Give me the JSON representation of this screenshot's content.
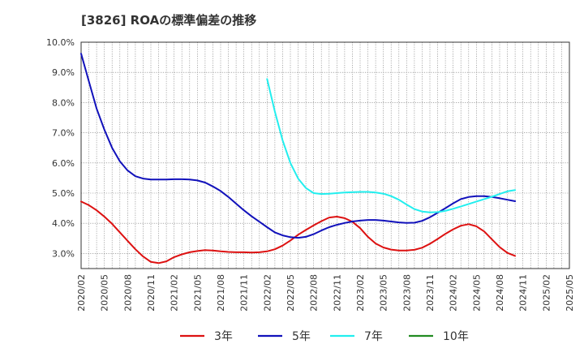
{
  "chart_data": {
    "type": "line",
    "title": "[3826]  ROAの標準偏差の推移",
    "xlabel": "",
    "ylabel": "",
    "ylim": [
      2.5,
      10.0
    ],
    "y_ticks": [
      "10.0%",
      "9.0%",
      "8.0%",
      "7.0%",
      "6.0%",
      "5.0%",
      "4.0%",
      "3.0%"
    ],
    "y_tick_values": [
      10.0,
      9.0,
      8.0,
      7.0,
      6.0,
      5.0,
      4.0,
      3.0
    ],
    "x_ticks": [
      "2020/02",
      "2020/05",
      "2020/08",
      "2020/11",
      "2021/02",
      "2021/05",
      "2021/08",
      "2021/11",
      "2022/02",
      "2022/05",
      "2022/08",
      "2022/11",
      "2023/02",
      "2023/05",
      "2023/08",
      "2023/11",
      "2024/02",
      "2024/05",
      "2024/08",
      "2024/11",
      "2025/02",
      "2025/05"
    ],
    "grid": true,
    "legend_position": "bottom",
    "series": [
      {
        "name": "3年",
        "color": "#dd1111",
        "points": [
          [
            "2020/02",
            4.72
          ],
          [
            "2020/03",
            4.6
          ],
          [
            "2020/04",
            4.43
          ],
          [
            "2020/05",
            4.22
          ],
          [
            "2020/06",
            3.98
          ],
          [
            "2020/07",
            3.7
          ],
          [
            "2020/08",
            3.42
          ],
          [
            "2020/09",
            3.14
          ],
          [
            "2020/10",
            2.9
          ],
          [
            "2020/11",
            2.72
          ],
          [
            "2020/12",
            2.68
          ],
          [
            "2021/01",
            2.74
          ],
          [
            "2021/02",
            2.88
          ],
          [
            "2021/03",
            2.97
          ],
          [
            "2021/04",
            3.04
          ],
          [
            "2021/05",
            3.08
          ],
          [
            "2021/06",
            3.11
          ],
          [
            "2021/07",
            3.1
          ],
          [
            "2021/08",
            3.07
          ],
          [
            "2021/09",
            3.05
          ],
          [
            "2021/10",
            3.04
          ],
          [
            "2021/11",
            3.04
          ],
          [
            "2021/12",
            3.03
          ],
          [
            "2022/01",
            3.04
          ],
          [
            "2022/02",
            3.07
          ],
          [
            "2022/03",
            3.14
          ],
          [
            "2022/04",
            3.26
          ],
          [
            "2022/05",
            3.43
          ],
          [
            "2022/06",
            3.62
          ],
          [
            "2022/07",
            3.78
          ],
          [
            "2022/08",
            3.93
          ],
          [
            "2022/09",
            4.07
          ],
          [
            "2022/10",
            4.19
          ],
          [
            "2022/11",
            4.22
          ],
          [
            "2022/12",
            4.17
          ],
          [
            "2023/01",
            4.05
          ],
          [
            "2023/02",
            3.84
          ],
          [
            "2023/03",
            3.55
          ],
          [
            "2023/04",
            3.33
          ],
          [
            "2023/05",
            3.2
          ],
          [
            "2023/06",
            3.13
          ],
          [
            "2023/07",
            3.1
          ],
          [
            "2023/08",
            3.1
          ],
          [
            "2023/09",
            3.12
          ],
          [
            "2023/10",
            3.19
          ],
          [
            "2023/11",
            3.32
          ],
          [
            "2023/12",
            3.48
          ],
          [
            "2024/01",
            3.65
          ],
          [
            "2024/02",
            3.8
          ],
          [
            "2024/03",
            3.92
          ],
          [
            "2024/04",
            3.97
          ],
          [
            "2024/05",
            3.9
          ],
          [
            "2024/06",
            3.73
          ],
          [
            "2024/07",
            3.47
          ],
          [
            "2024/08",
            3.21
          ],
          [
            "2024/09",
            3.02
          ],
          [
            "2024/10",
            2.92
          ]
        ]
      },
      {
        "name": "5年",
        "color": "#1111bb",
        "points": [
          [
            "2020/02",
            9.62
          ],
          [
            "2020/03",
            8.7
          ],
          [
            "2020/04",
            7.8
          ],
          [
            "2020/05",
            7.1
          ],
          [
            "2020/06",
            6.5
          ],
          [
            "2020/07",
            6.05
          ],
          [
            "2020/08",
            5.75
          ],
          [
            "2020/09",
            5.56
          ],
          [
            "2020/10",
            5.48
          ],
          [
            "2020/11",
            5.45
          ],
          [
            "2020/12",
            5.45
          ],
          [
            "2021/01",
            5.45
          ],
          [
            "2021/02",
            5.46
          ],
          [
            "2021/03",
            5.46
          ],
          [
            "2021/04",
            5.45
          ],
          [
            "2021/05",
            5.42
          ],
          [
            "2021/06",
            5.35
          ],
          [
            "2021/07",
            5.22
          ],
          [
            "2021/08",
            5.07
          ],
          [
            "2021/09",
            4.87
          ],
          [
            "2021/10",
            4.65
          ],
          [
            "2021/11",
            4.43
          ],
          [
            "2021/12",
            4.23
          ],
          [
            "2022/01",
            4.05
          ],
          [
            "2022/02",
            3.87
          ],
          [
            "2022/03",
            3.7
          ],
          [
            "2022/04",
            3.6
          ],
          [
            "2022/05",
            3.54
          ],
          [
            "2022/06",
            3.52
          ],
          [
            "2022/07",
            3.55
          ],
          [
            "2022/08",
            3.64
          ],
          [
            "2022/09",
            3.76
          ],
          [
            "2022/10",
            3.87
          ],
          [
            "2022/11",
            3.95
          ],
          [
            "2022/12",
            4.01
          ],
          [
            "2023/01",
            4.06
          ],
          [
            "2023/02",
            4.09
          ],
          [
            "2023/03",
            4.11
          ],
          [
            "2023/04",
            4.11
          ],
          [
            "2023/05",
            4.09
          ],
          [
            "2023/06",
            4.06
          ],
          [
            "2023/07",
            4.03
          ],
          [
            "2023/08",
            4.01
          ],
          [
            "2023/09",
            4.02
          ],
          [
            "2023/10",
            4.08
          ],
          [
            "2023/11",
            4.2
          ],
          [
            "2023/12",
            4.35
          ],
          [
            "2024/01",
            4.5
          ],
          [
            "2024/02",
            4.66
          ],
          [
            "2024/03",
            4.8
          ],
          [
            "2024/04",
            4.87
          ],
          [
            "2024/05",
            4.9
          ],
          [
            "2024/06",
            4.9
          ],
          [
            "2024/07",
            4.87
          ],
          [
            "2024/08",
            4.83
          ],
          [
            "2024/09",
            4.78
          ],
          [
            "2024/10",
            4.73
          ]
        ]
      },
      {
        "name": "7年",
        "color": "#22eeee",
        "points": [
          [
            "2022/02",
            8.78
          ],
          [
            "2022/03",
            7.7
          ],
          [
            "2022/04",
            6.75
          ],
          [
            "2022/05",
            6.0
          ],
          [
            "2022/06",
            5.48
          ],
          [
            "2022/07",
            5.17
          ],
          [
            "2022/08",
            5.0
          ],
          [
            "2022/09",
            4.97
          ],
          [
            "2022/10",
            4.98
          ],
          [
            "2022/11",
            5.0
          ],
          [
            "2022/12",
            5.02
          ],
          [
            "2023/01",
            5.03
          ],
          [
            "2023/02",
            5.04
          ],
          [
            "2023/03",
            5.04
          ],
          [
            "2023/04",
            5.02
          ],
          [
            "2023/05",
            4.98
          ],
          [
            "2023/06",
            4.9
          ],
          [
            "2023/07",
            4.78
          ],
          [
            "2023/08",
            4.62
          ],
          [
            "2023/09",
            4.47
          ],
          [
            "2023/10",
            4.39
          ],
          [
            "2023/11",
            4.36
          ],
          [
            "2023/12",
            4.37
          ],
          [
            "2024/01",
            4.41
          ],
          [
            "2024/02",
            4.48
          ],
          [
            "2024/03",
            4.56
          ],
          [
            "2024/04",
            4.64
          ],
          [
            "2024/05",
            4.72
          ],
          [
            "2024/06",
            4.8
          ],
          [
            "2024/07",
            4.88
          ],
          [
            "2024/08",
            4.97
          ],
          [
            "2024/09",
            5.06
          ],
          [
            "2024/10",
            5.1
          ]
        ]
      },
      {
        "name": "10年",
        "color": "#228b22",
        "points": []
      }
    ]
  }
}
